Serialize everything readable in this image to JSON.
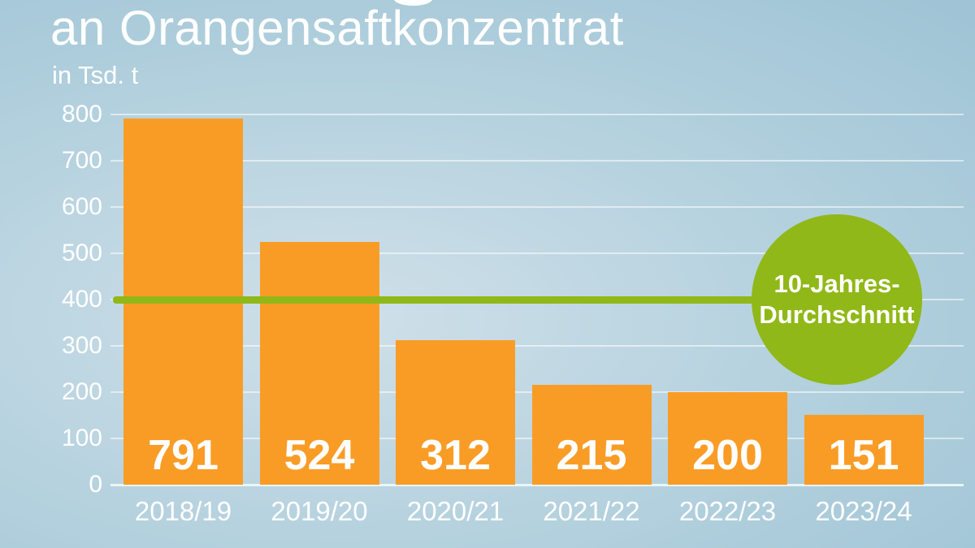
{
  "header": {
    "title_line": "an Orangensaftkonzentrat",
    "unit": "in Tsd. t"
  },
  "chart_data": {
    "type": "bar",
    "title": "an Orangensaftkonzentrat",
    "subtitle_unit": "in Tsd. t",
    "categories": [
      "2018/19",
      "2019/20",
      "2020/21",
      "2021/22",
      "2022/23",
      "2023/24"
    ],
    "values": [
      791,
      524,
      312,
      215,
      200,
      151
    ],
    "ylim": [
      0,
      800
    ],
    "ytick_interval": 100,
    "yticks": [
      800,
      700,
      600,
      500,
      400,
      300,
      200,
      100,
      0
    ],
    "grid": true,
    "bar_value_labels_inside": true,
    "average_line": {
      "value": 400,
      "label_line1": "10-Jahres-",
      "label_line2": "Durchschnitt"
    }
  },
  "colors": {
    "bar_orange": "#F99C26",
    "accent_green": "#90B818",
    "text_white": "#FFFFFF",
    "bg_center": "#CFE0E9",
    "bg_mid": "#AFCEDC",
    "bg_edge": "#92BBD0"
  }
}
